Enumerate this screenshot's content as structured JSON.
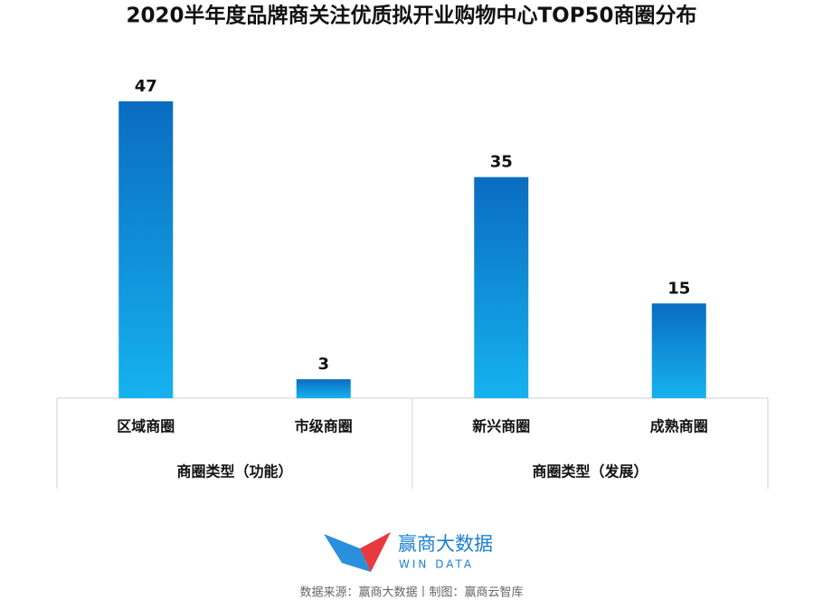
{
  "chart_data": {
    "type": "bar",
    "title": "2020半年度品牌商关注优质拟开业购物中心TOP50商圈分布",
    "categories": [
      "区域商圈",
      "市级商圈",
      "新兴商圈",
      "成熟商圈"
    ],
    "values": [
      47,
      3,
      35,
      15
    ],
    "groups": [
      "商圈类型（功能）",
      "商圈类型（发展）"
    ],
    "colors": [
      "#0a6cc0",
      "#16b2ef"
    ],
    "ylim": [
      0,
      50
    ]
  },
  "footer": {
    "logo_name": "赢商大数据",
    "logo_subtitle": "WIN DATA",
    "source": "数据来源：赢商大数据丨制图：赢商云智库"
  }
}
